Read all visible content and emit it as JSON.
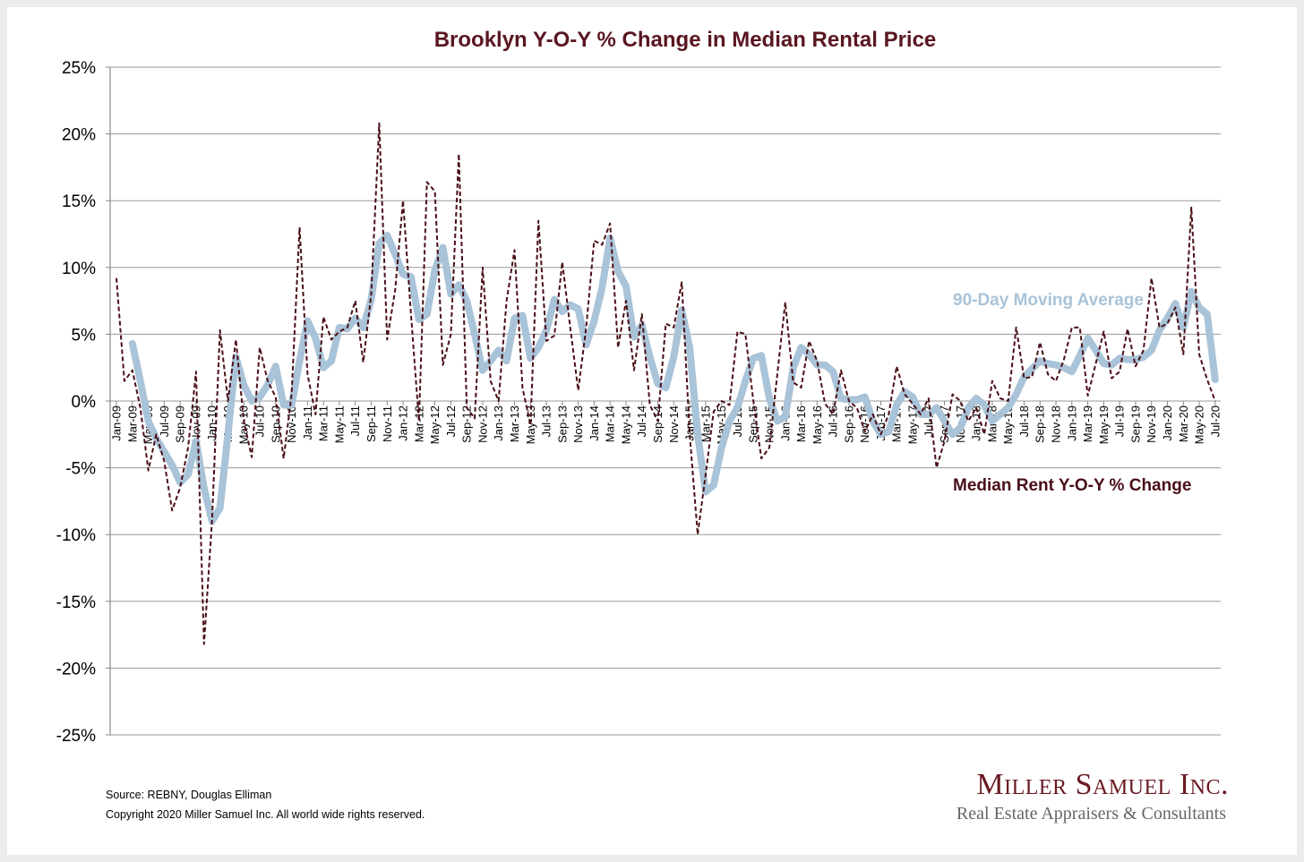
{
  "chart_data": {
    "type": "line",
    "title": "Brooklyn Y-O-Y % Change in Median Rental Price",
    "xlabel": "",
    "ylabel": "",
    "ylim": [
      -25,
      25
    ],
    "y_ticks": [
      "25%",
      "20%",
      "15%",
      "10%",
      "5%",
      "0%",
      "-5%",
      "-10%",
      "-15%",
      "-20%",
      "-25%"
    ],
    "y_tick_values": [
      25,
      20,
      15,
      10,
      5,
      0,
      -5,
      -10,
      -15,
      -20,
      -25
    ],
    "grid": true,
    "x_range": [
      "Jan-09",
      "Jul-20"
    ],
    "x_tick_labels": [
      "Jan-09",
      "Mar-09",
      "May-09",
      "Jul-09",
      "Sep-09",
      "Nov-09",
      "Jan-10",
      "Mar-10",
      "May-10",
      "Jul-10",
      "Sep-10",
      "Nov-10",
      "Jan-11",
      "Mar-11",
      "May-11",
      "Jul-11",
      "Sep-11",
      "Nov-11",
      "Jan-12",
      "Mar-12",
      "May-12",
      "Jul-12",
      "Sep-12",
      "Nov-12",
      "Jan-13",
      "Mar-13",
      "May-13",
      "Jul-13",
      "Sep-13",
      "Nov-13",
      "Jan-14",
      "Mar-14",
      "May-14",
      "Jul-14",
      "Sep-14",
      "Nov-14",
      "Jan-15",
      "Mar-15",
      "May-15",
      "Jul-15",
      "Sep-15",
      "Nov-15",
      "Jan-16",
      "Mar-16",
      "May-16",
      "Jul-16",
      "Sep-16",
      "Nov-16",
      "Jan-17",
      "Mar-17",
      "May-17",
      "Jul-17",
      "Sep-17",
      "Nov-17",
      "Jan-18",
      "Mar-18",
      "May-18",
      "Jul-18",
      "Sep-18",
      "Nov-18",
      "Jan-19",
      "Mar-19",
      "May-19",
      "Jul-19",
      "Sep-19",
      "Nov-19",
      "Jan-20",
      "Mar-20",
      "May-20",
      "Jul-20"
    ],
    "series": [
      {
        "name": "Median Rent Y-O-Y % Change",
        "color": "#4a0f16",
        "style": "dashed",
        "values": [
          9.2,
          1.5,
          2.3,
          -0.5,
          -5.2,
          -2.5,
          -4.5,
          -8.2,
          -6.5,
          -3.5,
          2.2,
          -18.2,
          -9.0,
          5.3,
          0.0,
          4.6,
          -1.5,
          -4.2,
          4.0,
          1.5,
          0.3,
          -4.3,
          0.5,
          13.0,
          2.0,
          -1.0,
          6.3,
          4.6,
          5.2,
          5.5,
          7.5,
          2.9,
          8.0,
          20.8,
          4.6,
          8.3,
          15.0,
          6.5,
          -1.5,
          16.4,
          15.7,
          2.7,
          5.0,
          18.5,
          -0.5,
          -1.3,
          10.0,
          1.5,
          0.0,
          7.5,
          11.3,
          1.0,
          -1.8,
          13.5,
          4.5,
          4.9,
          10.4,
          5.5,
          0.8,
          5.5,
          12.0,
          11.7,
          13.3,
          4.0,
          7.5,
          2.3,
          6.5,
          -0.3,
          -1.5,
          5.8,
          5.5,
          8.9,
          -2.5,
          -10.0,
          -5.5,
          -0.8,
          0.0,
          -0.3,
          5.2,
          5.0,
          0.0,
          -4.3,
          -3.5,
          2.0,
          7.4,
          1.4,
          1.0,
          4.5,
          3.0,
          -0.2,
          -1.0,
          2.3,
          0.0,
          -0.5,
          -2.3,
          -1.0,
          -2.5,
          -1.0,
          2.6,
          0.5,
          -0.2,
          -1.0,
          0.2,
          -5.0,
          -3.0,
          0.5,
          0.0,
          -1.5,
          -0.5,
          -2.5,
          1.5,
          0.2,
          0.0,
          5.5,
          1.7,
          1.8,
          4.4,
          2.0,
          1.5,
          3.1,
          5.5,
          5.5,
          0.4,
          2.8,
          5.2,
          1.7,
          2.2,
          5.4,
          2.6,
          3.8,
          9.2,
          5.5,
          5.8,
          7.0,
          3.5,
          14.5,
          3.5,
          1.6,
          0.0
        ]
      },
      {
        "name": "90-Day Moving Average",
        "color": "#a9c3d8",
        "style": "solid-thick",
        "values": [
          null,
          null,
          4.3,
          1.5,
          -1.5,
          -2.8,
          -3.8,
          -4.8,
          -6.1,
          -5.5,
          -3.0,
          -6.5,
          -9.0,
          -8.0,
          -2.5,
          3.3,
          1.2,
          0.0,
          0.3,
          1.2,
          2.6,
          -0.3,
          -0.3,
          3.0,
          6.0,
          4.7,
          2.5,
          3.0,
          5.5,
          5.4,
          6.2,
          5.5,
          7.6,
          11.8,
          12.4,
          11.0,
          9.5,
          9.3,
          6.1,
          6.5,
          9.8,
          11.5,
          8.0,
          8.7,
          7.5,
          5.0,
          2.3,
          3.0,
          3.8,
          3.0,
          6.2,
          6.4,
          3.2,
          4.0,
          5.3,
          7.6,
          6.7,
          7.2,
          6.9,
          4.2,
          6.0,
          8.5,
          12.2,
          9.7,
          8.6,
          4.8,
          5.7,
          3.3,
          1.3,
          1.0,
          3.3,
          6.8,
          4.0,
          -2.5,
          -6.8,
          -6.3,
          -3.5,
          -1.5,
          -0.5,
          1.5,
          3.2,
          3.4,
          0.2,
          -1.5,
          -1.2,
          2.5,
          4.0,
          3.5,
          2.7,
          2.7,
          2.2,
          0.2,
          0.1,
          0.1,
          0.3,
          -1.5,
          -2.5,
          -2.3,
          -0.3,
          0.7,
          0.3,
          -1.0,
          -1.0,
          -0.5,
          -1.5,
          -2.5,
          -2.0,
          -0.5,
          0.2,
          -0.3,
          -1.5,
          -1.0,
          -0.5,
          0.5,
          1.8,
          2.4,
          3.0,
          2.8,
          2.7,
          2.5,
          2.2,
          3.4,
          4.7,
          3.8,
          2.8,
          2.7,
          3.2,
          3.1,
          3.1,
          3.3,
          3.8,
          5.3,
          6.2,
          7.3,
          5.5,
          8.2,
          7.0,
          6.5,
          1.6
        ]
      }
    ],
    "annotations": {
      "ma_label": "90-Day Moving Average",
      "raw_label": "Median Rent Y-O-Y % Change"
    }
  },
  "footer": {
    "source": "Source: REBNY, Douglas Elliman",
    "copyright": "Copyright 2020 Miller Samuel Inc.  All world wide rights reserved."
  },
  "logo": {
    "name": "Miller Samuel Inc.",
    "tagline": "Real Estate Appraisers & Consultants"
  }
}
